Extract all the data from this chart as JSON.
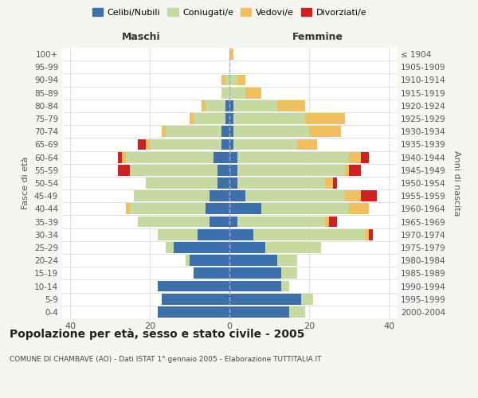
{
  "age_groups": [
    "0-4",
    "5-9",
    "10-14",
    "15-19",
    "20-24",
    "25-29",
    "30-34",
    "35-39",
    "40-44",
    "45-49",
    "50-54",
    "55-59",
    "60-64",
    "65-69",
    "70-74",
    "75-79",
    "80-84",
    "85-89",
    "90-94",
    "95-99",
    "100+"
  ],
  "birth_years": [
    "2000-2004",
    "1995-1999",
    "1990-1994",
    "1985-1989",
    "1980-1984",
    "1975-1979",
    "1970-1974",
    "1965-1969",
    "1960-1964",
    "1955-1959",
    "1950-1954",
    "1945-1949",
    "1940-1944",
    "1935-1939",
    "1930-1934",
    "1925-1929",
    "1920-1924",
    "1915-1919",
    "1910-1914",
    "1905-1909",
    "≤ 1904"
  ],
  "colors": {
    "celibi": "#3d6fa8",
    "coniugati": "#c5d9a0",
    "vedovi": "#f0c060",
    "divorziati": "#cc2222"
  },
  "maschi": {
    "celibi": [
      18,
      17,
      18,
      9,
      10,
      14,
      8,
      5,
      6,
      5,
      3,
      3,
      4,
      2,
      2,
      1,
      1,
      0,
      0,
      0,
      0
    ],
    "coniugati": [
      0,
      0,
      0,
      0,
      1,
      2,
      10,
      18,
      19,
      19,
      18,
      22,
      22,
      18,
      14,
      8,
      5,
      2,
      1,
      0,
      0
    ],
    "vedovi": [
      0,
      0,
      0,
      0,
      0,
      0,
      0,
      0,
      1,
      0,
      0,
      0,
      1,
      1,
      1,
      1,
      1,
      0,
      1,
      0,
      0
    ],
    "divorziati": [
      0,
      0,
      0,
      0,
      0,
      0,
      0,
      0,
      0,
      0,
      0,
      3,
      1,
      2,
      0,
      0,
      0,
      0,
      0,
      0,
      0
    ]
  },
  "femmine": {
    "celibi": [
      15,
      18,
      13,
      13,
      12,
      9,
      6,
      2,
      8,
      4,
      2,
      2,
      2,
      1,
      1,
      1,
      1,
      0,
      0,
      0,
      0
    ],
    "coniugati": [
      4,
      3,
      2,
      4,
      5,
      14,
      28,
      22,
      22,
      25,
      22,
      27,
      28,
      16,
      19,
      18,
      11,
      4,
      2,
      0,
      0
    ],
    "vedovi": [
      0,
      0,
      0,
      0,
      0,
      0,
      1,
      1,
      5,
      4,
      2,
      1,
      3,
      5,
      8,
      10,
      7,
      4,
      2,
      0,
      1
    ],
    "divorziati": [
      0,
      0,
      0,
      0,
      0,
      0,
      1,
      2,
      0,
      4,
      1,
      3,
      2,
      0,
      0,
      0,
      0,
      0,
      0,
      0,
      0
    ]
  },
  "xlim": 42,
  "title": "Popolazione per età, sesso e stato civile - 2005",
  "subtitle": "COMUNE DI CHAMBAVE (AO) - Dati ISTAT 1° gennaio 2005 - Elaborazione TUTTITALIA.IT",
  "ylabel_left": "Fasce di età",
  "ylabel_right": "Anni di nascita",
  "xlabel_left": "Maschi",
  "xlabel_right": "Femmine",
  "bg_color": "#f5f5f2",
  "plot_bg": "#ffffff",
  "legend_labels": [
    "Celibi/Nubili",
    "Coniugati/e",
    "Vedovi/e",
    "Divorziati/e"
  ]
}
